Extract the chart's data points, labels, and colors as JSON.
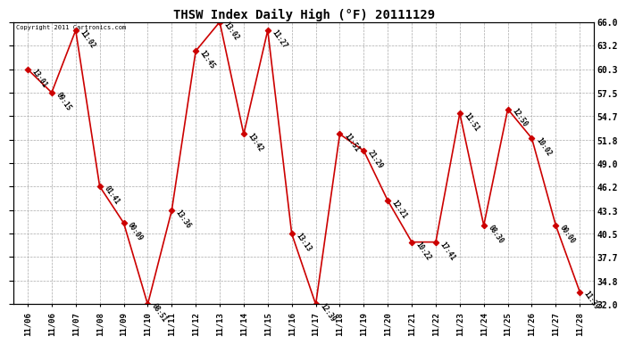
{
  "title": "THSW Index Daily High (°F) 20111129",
  "copyright": "Copyright 2011 Cartronics.com",
  "background_color": "#ffffff",
  "plot_bg_color": "#ffffff",
  "grid_color": "#aaaaaa",
  "line_color": "#cc0000",
  "marker_color": "#cc0000",
  "x_labels": [
    "11/06",
    "11/06",
    "11/07",
    "11/08",
    "11/09",
    "11/10",
    "11/11",
    "11/12",
    "11/13",
    "11/14",
    "11/15",
    "11/16",
    "11/17",
    "11/18",
    "11/19",
    "11/20",
    "11/21",
    "11/22",
    "11/23",
    "11/24",
    "11/25",
    "11/26",
    "11/27",
    "11/28"
  ],
  "y_values": [
    60.3,
    57.5,
    65.0,
    46.2,
    41.8,
    32.0,
    43.3,
    62.5,
    66.0,
    52.5,
    65.0,
    40.5,
    32.0,
    52.5,
    50.5,
    44.5,
    39.5,
    39.5,
    55.0,
    41.5,
    55.5,
    52.0,
    41.5,
    33.5
  ],
  "point_labels": [
    "13:01",
    "09:15",
    "11:02",
    "01:41",
    "00:09",
    "08:51",
    "13:36",
    "12:45",
    "13:02",
    "13:42",
    "11:27",
    "13:13",
    "12:39",
    "11:51",
    "21:29",
    "12:21",
    "10:22",
    "17:41",
    "11:51",
    "08:30",
    "12:50",
    "10:02",
    "00:00",
    "11:39"
  ],
  "ylim_low": 32.0,
  "ylim_high": 66.0,
  "ytick_vals": [
    32.0,
    34.8,
    37.7,
    40.5,
    43.3,
    46.2,
    49.0,
    51.8,
    54.7,
    57.5,
    60.3,
    63.2,
    66.0
  ],
  "figwidth": 6.9,
  "figheight": 3.75,
  "dpi": 100,
  "xlabel_fontsize": 6.5,
  "ylabel_fontsize": 7,
  "title_fontsize": 10,
  "label_fontsize": 5.5,
  "label_rotation": -55
}
